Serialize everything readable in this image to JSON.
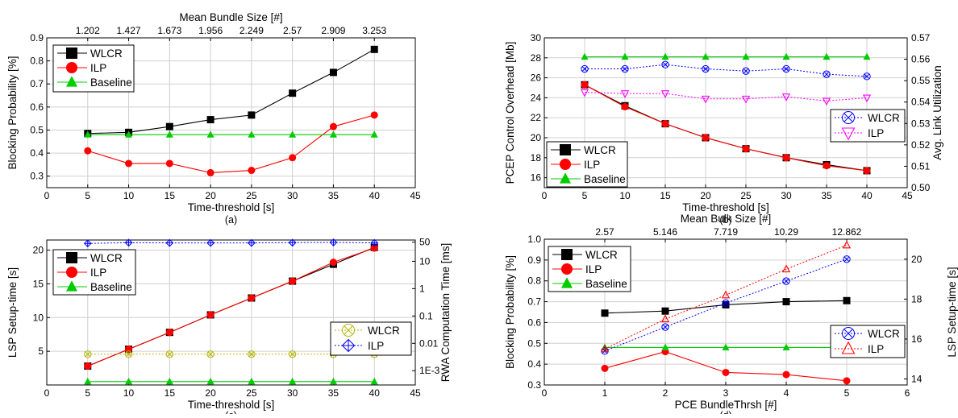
{
  "chart_data": [
    {
      "id": "a",
      "type": "line",
      "caption": "(a)",
      "xlabel": "Time-threshold [s]",
      "ylabel": "Blocking Probability [%]",
      "top_xlabel": "Mean Bundle Size [#]",
      "top_ticks": [
        "1.202",
        "1.427",
        "1.673",
        "1.956",
        "2.249",
        "2.57",
        "2.909",
        "3.253"
      ],
      "xlim": [
        0,
        45
      ],
      "xticks": [
        0,
        5,
        10,
        15,
        20,
        25,
        30,
        35,
        40,
        45
      ],
      "ylim": [
        0.25,
        0.9
      ],
      "yticks": [
        0.3,
        0.4,
        0.5,
        0.6,
        0.7,
        0.8,
        0.9
      ],
      "x": [
        5,
        10,
        15,
        20,
        25,
        30,
        35,
        40
      ],
      "series": [
        {
          "name": "WLCR",
          "axis": "left",
          "color": "#000000",
          "marker": "square",
          "values": [
            0.485,
            0.49,
            0.515,
            0.545,
            0.565,
            0.66,
            0.75,
            0.85
          ]
        },
        {
          "name": "ILP",
          "axis": "left",
          "color": "#ff0000",
          "marker": "circle",
          "values": [
            0.41,
            0.355,
            0.355,
            0.315,
            0.325,
            0.38,
            0.515,
            0.565
          ]
        },
        {
          "name": "Baseline",
          "axis": "left",
          "color": "#00cc00",
          "marker": "triangle",
          "values": [
            0.48,
            0.48,
            0.48,
            0.48,
            0.48,
            0.48,
            0.48,
            0.48
          ]
        }
      ],
      "legend": {
        "position": "top-left",
        "entries": [
          "WLCR",
          "ILP",
          "Baseline"
        ]
      }
    },
    {
      "id": "b",
      "type": "line",
      "caption": "(b)",
      "xlabel": "Time-threshold [s]",
      "ylabel": "PCEP Control Overhead [Mb]",
      "right_ylabel": "Avg. Link Utilization",
      "xlim": [
        0,
        45
      ],
      "xticks": [
        0,
        5,
        10,
        15,
        20,
        25,
        30,
        35,
        40,
        45
      ],
      "ylim": [
        15,
        30
      ],
      "yticks": [
        16,
        18,
        20,
        22,
        24,
        26,
        28,
        30
      ],
      "right_ylim": [
        0.5,
        0.57
      ],
      "right_yticks": [
        "0.50",
        "0.51",
        "0.52",
        "0.53",
        "0.54",
        "0.55",
        "0.56",
        "0.57"
      ],
      "x": [
        5,
        10,
        15,
        20,
        25,
        30,
        35,
        40
      ],
      "series": [
        {
          "name": "WLCR",
          "axis": "left",
          "color": "#000000",
          "marker": "square",
          "values": [
            25.3,
            23.2,
            21.4,
            20.0,
            18.9,
            18.0,
            17.3,
            16.7
          ]
        },
        {
          "name": "ILP",
          "axis": "left",
          "color": "#ff0000",
          "marker": "circle",
          "values": [
            25.3,
            23.1,
            21.4,
            20.0,
            18.9,
            18.0,
            17.2,
            16.7
          ]
        },
        {
          "name": "Baseline",
          "axis": "left",
          "color": "#00cc00",
          "marker": "triangle",
          "values": [
            28.1,
            28.1,
            28.1,
            28.1,
            28.1,
            28.1,
            28.1,
            28.1
          ]
        },
        {
          "name": "WLCR",
          "axis": "right",
          "color": "#0000ff",
          "marker": "circle-x",
          "dashed": true,
          "values": [
            0.5555,
            0.5555,
            0.5575,
            0.5555,
            0.5545,
            0.5555,
            0.553,
            0.552
          ]
        },
        {
          "name": "ILP",
          "axis": "right",
          "color": "#ff00ff",
          "marker": "triangle-down",
          "dashed": true,
          "values": [
            0.5445,
            0.544,
            0.544,
            0.5415,
            0.5415,
            0.5425,
            0.5405,
            0.542
          ]
        }
      ],
      "legend": {
        "position": "bottom-left",
        "entries": [
          "WLCR",
          "ILP",
          "Baseline"
        ]
      },
      "legend_right": {
        "position": "right",
        "entries": [
          "WLCR",
          "ILP"
        ]
      }
    },
    {
      "id": "c",
      "type": "line",
      "caption": "(c)",
      "xlabel": "Time-threshold [s]",
      "ylabel": "LSP  Setup-time [s]",
      "right_ylabel": "RWA Computation Time [ms]",
      "xlim": [
        0,
        45
      ],
      "xticks": [
        0,
        5,
        10,
        15,
        20,
        25,
        30,
        35,
        40,
        45
      ],
      "ylim": [
        0,
        21.5
      ],
      "yticks": [
        5,
        10,
        15,
        20
      ],
      "right_scale": "log",
      "right_ylim": [
        0.0003,
        60
      ],
      "right_yticks": [
        {
          "v": 0.001,
          "label": "1E-3"
        },
        {
          "v": 0.01,
          "label": "0.01"
        },
        {
          "v": 0.1,
          "label": "0.1"
        },
        {
          "v": 1,
          "label": "1"
        },
        {
          "v": 10,
          "label": "10"
        },
        {
          "v": 50,
          "label": "50"
        }
      ],
      "x": [
        5,
        10,
        15,
        20,
        25,
        30,
        35,
        40
      ],
      "series": [
        {
          "name": "WLCR",
          "axis": "left",
          "color": "#000000",
          "marker": "square",
          "values": [
            2.8,
            5.3,
            7.8,
            10.4,
            12.9,
            15.4,
            17.9,
            20.4
          ]
        },
        {
          "name": "ILP",
          "axis": "left",
          "color": "#ff0000",
          "marker": "circle",
          "values": [
            2.8,
            5.3,
            7.8,
            10.4,
            12.9,
            15.4,
            18.2,
            20.3
          ]
        },
        {
          "name": "Baseline",
          "axis": "left",
          "color": "#00cc00",
          "marker": "triangle",
          "values": [
            0.5,
            0.5,
            0.5,
            0.5,
            0.5,
            0.5,
            0.5,
            0.5
          ]
        },
        {
          "name": "WLCR",
          "axis": "right",
          "color": "#b3b300",
          "marker": "circle-x",
          "dashed": true,
          "values": [
            0.004,
            0.004,
            0.004,
            0.004,
            0.004,
            0.004,
            0.004,
            0.004
          ]
        },
        {
          "name": "ILP",
          "axis": "right",
          "color": "#0000ff",
          "marker": "diamond-plus",
          "dashed": true,
          "values": [
            45,
            48,
            47,
            47,
            47,
            48,
            49,
            47
          ]
        }
      ],
      "legend": {
        "position": "top-left",
        "entries": [
          "WLCR",
          "ILP",
          "Baseline"
        ]
      },
      "legend_right": {
        "position": "right",
        "entries": [
          "WLCR",
          "ILP"
        ]
      }
    },
    {
      "id": "d",
      "type": "line",
      "caption": "(d)",
      "xlabel": "PCE BundleThrsh [#]",
      "ylabel": "Blocking Probability [%]",
      "right_ylabel": "LSP  Setup-time [s]",
      "top_xlabel": "Mean Bulk Size [#]",
      "top_ticks": [
        "2.57",
        "5.146",
        "7.719",
        "10.29",
        "12.862"
      ],
      "xlim": [
        0,
        6
      ],
      "xticks": [
        0,
        1,
        2,
        3,
        4,
        5,
        6
      ],
      "ylim": [
        0.3,
        1.0
      ],
      "yticks": [
        "0.3",
        "0.4",
        "0.5",
        "0.6",
        "0.7",
        "0.8",
        "0.9",
        "1.0"
      ],
      "right_ylim": [
        13.7,
        21
      ],
      "right_yticks": [
        14,
        16,
        18,
        20
      ],
      "x": [
        1,
        2,
        3,
        4,
        5
      ],
      "series": [
        {
          "name": "WLCR",
          "axis": "left",
          "color": "#000000",
          "marker": "square",
          "values": [
            0.645,
            0.655,
            0.685,
            0.7,
            0.705
          ]
        },
        {
          "name": "ILP",
          "axis": "left",
          "color": "#ff0000",
          "marker": "circle",
          "values": [
            0.38,
            0.46,
            0.36,
            0.35,
            0.32
          ]
        },
        {
          "name": "Baseline",
          "axis": "left",
          "color": "#00cc00",
          "marker": "triangle",
          "values": [
            0.48,
            0.48,
            0.48,
            0.48,
            0.48
          ]
        },
        {
          "name": "WLCR",
          "axis": "right",
          "color": "#0000ff",
          "marker": "circle-x",
          "dashed": true,
          "values": [
            15.4,
            16.6,
            17.8,
            18.9,
            20.0
          ]
        },
        {
          "name": "ILP",
          "axis": "right",
          "color": "#ff0000",
          "marker": "triangle",
          "dashed": true,
          "values": [
            15.5,
            17.0,
            18.2,
            19.5,
            20.7
          ]
        }
      ],
      "legend": {
        "position": "top-left",
        "entries": [
          "WLCR",
          "ILP",
          "Baseline"
        ]
      },
      "legend_right": {
        "position": "bottom-right",
        "entries": [
          "WLCR",
          "ILP"
        ]
      }
    }
  ]
}
